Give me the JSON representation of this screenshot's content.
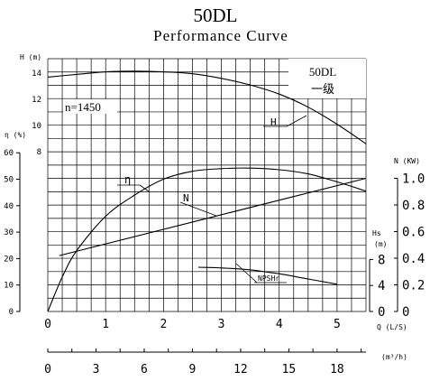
{
  "chart_data": {
    "type": "line",
    "title": "50DL",
    "subtitle": "Performance Curve",
    "model_box": {
      "line1": "50DL",
      "line2": "一级"
    },
    "speed_label": "n=1450",
    "x": {
      "label": "Q (L/S)",
      "range": [
        0,
        5.5
      ],
      "ticks": [
        "0",
        "1",
        "2",
        "3",
        "4",
        "5"
      ],
      "tick_values": [
        0,
        1,
        2,
        3,
        4,
        5
      ]
    },
    "x2": {
      "label": "(m³/h)",
      "range": [
        0,
        19.8
      ],
      "ticks": [
        "0",
        "3",
        "6",
        "9",
        "12",
        "15",
        "18"
      ],
      "tick_values": [
        0,
        3,
        6,
        9,
        12,
        15,
        18
      ]
    },
    "axes": {
      "head": {
        "label": "H (m)",
        "ticks": [
          "8",
          "10",
          "12",
          "14"
        ],
        "tick_values": [
          8,
          10,
          12,
          14
        ]
      },
      "efficiency": {
        "label": "η (%)",
        "ticks": [
          "0",
          "10",
          "20",
          "30",
          "40",
          "50",
          "60"
        ],
        "tick_values": [
          0,
          10,
          20,
          30,
          40,
          50,
          60
        ]
      },
      "power": {
        "label": "N (KW)",
        "ticks": [
          "0",
          "0.2",
          "0.4",
          "0.6",
          "0.8",
          "1.0"
        ],
        "tick_values": [
          0,
          0.2,
          0.4,
          0.6,
          0.8,
          1.0
        ]
      },
      "npsh": {
        "label": "Hs (m)",
        "ticks": [
          "0",
          "4",
          "8"
        ],
        "tick_values": [
          0,
          4,
          8
        ]
      }
    },
    "series": [
      {
        "name": "H",
        "axis": "head",
        "x": [
          0,
          0.5,
          1.0,
          1.5,
          2.0,
          2.5,
          3.0,
          3.5,
          4.0,
          4.5,
          5.0,
          5.5
        ],
        "y": [
          13.7,
          13.9,
          14.1,
          14.15,
          14.1,
          13.95,
          13.6,
          13.1,
          12.4,
          11.4,
          10.1,
          8.6
        ]
      },
      {
        "name": "η",
        "axis": "efficiency",
        "x": [
          0,
          0.25,
          0.5,
          1.0,
          1.5,
          2.0,
          2.5,
          3.0,
          3.5,
          4.0,
          4.5,
          5.0,
          5.5
        ],
        "y": [
          0,
          13,
          23,
          36,
          44,
          50,
          53,
          54,
          54.2,
          53.6,
          52,
          49,
          45.5
        ]
      },
      {
        "name": "N",
        "axis": "power",
        "x": [
          0.2,
          5.5
        ],
        "y": [
          0.42,
          1.0
        ]
      },
      {
        "name": "NPSHr",
        "axis": "npsh",
        "x": [
          2.6,
          3.0,
          3.5,
          4.0,
          4.5,
          5.0
        ],
        "y": [
          6.8,
          6.7,
          6.4,
          5.8,
          5.0,
          4.2
        ]
      }
    ],
    "curve_labels": {
      "H": "H",
      "eta": "η",
      "N": "N",
      "npsh": "NPSHr"
    },
    "grid": true
  }
}
